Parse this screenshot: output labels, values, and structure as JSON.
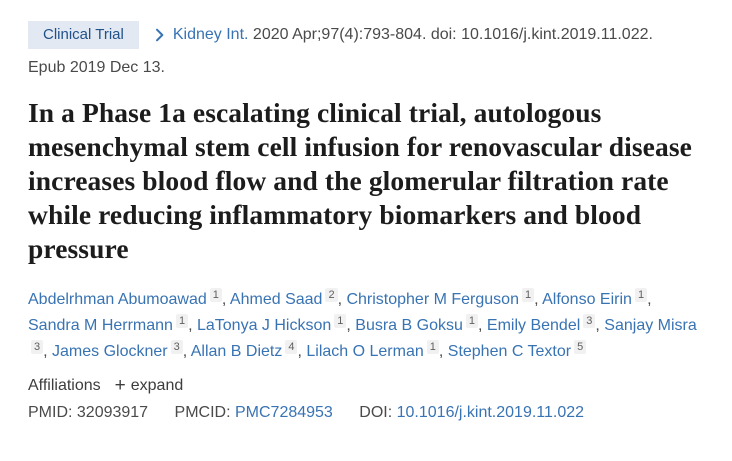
{
  "badge": {
    "label": "Clinical Trial"
  },
  "citation": {
    "journal": "Kidney Int.",
    "details": "2020 Apr;97(4):793-804. doi: 10.1016/j.kint.2019.11.022.",
    "epub": "Epub 2019 Dec 13."
  },
  "title": "In a Phase 1a escalating clinical trial, autologous mesenchymal stem cell infusion for renovascular disease increases blood flow and the glomerular filtration rate while reducing inflammatory biomarkers and blood pressure",
  "authors": [
    {
      "name": "Abdelrhman Abumoawad",
      "affiliation": "1"
    },
    {
      "name": "Ahmed Saad",
      "affiliation": "2"
    },
    {
      "name": "Christopher M Ferguson",
      "affiliation": "1"
    },
    {
      "name": "Alfonso Eirin",
      "affiliation": "1"
    },
    {
      "name": "Sandra M Herrmann",
      "affiliation": "1"
    },
    {
      "name": "LaTonya J Hickson",
      "affiliation": "1"
    },
    {
      "name": "Busra B Goksu",
      "affiliation": "1"
    },
    {
      "name": "Emily Bendel",
      "affiliation": "3"
    },
    {
      "name": "Sanjay Misra",
      "affiliation": "3"
    },
    {
      "name": "James Glockner",
      "affiliation": "3"
    },
    {
      "name": "Allan B Dietz",
      "affiliation": "4"
    },
    {
      "name": "Lilach O Lerman",
      "affiliation": "1"
    },
    {
      "name": "Stephen C Textor",
      "affiliation": "5"
    }
  ],
  "affiliations": {
    "label": "Affiliations",
    "plus_icon": "+",
    "expand_label": "expand"
  },
  "identifiers": {
    "pmid_label": "PMID: ",
    "pmid": "32093917",
    "pmcid_label": "PMCID: ",
    "pmcid": "PMC7284953",
    "doi_label": "DOI: ",
    "doi": "10.1016/j.kint.2019.11.022"
  },
  "colors": {
    "badge_bg": "#e3e9f2",
    "badge_text": "#20528a",
    "link_blue": "#3873b3",
    "body_text": "#4a4a4a",
    "title_text": "#1c1c1c",
    "superscript_bg": "#f1f1f1"
  }
}
